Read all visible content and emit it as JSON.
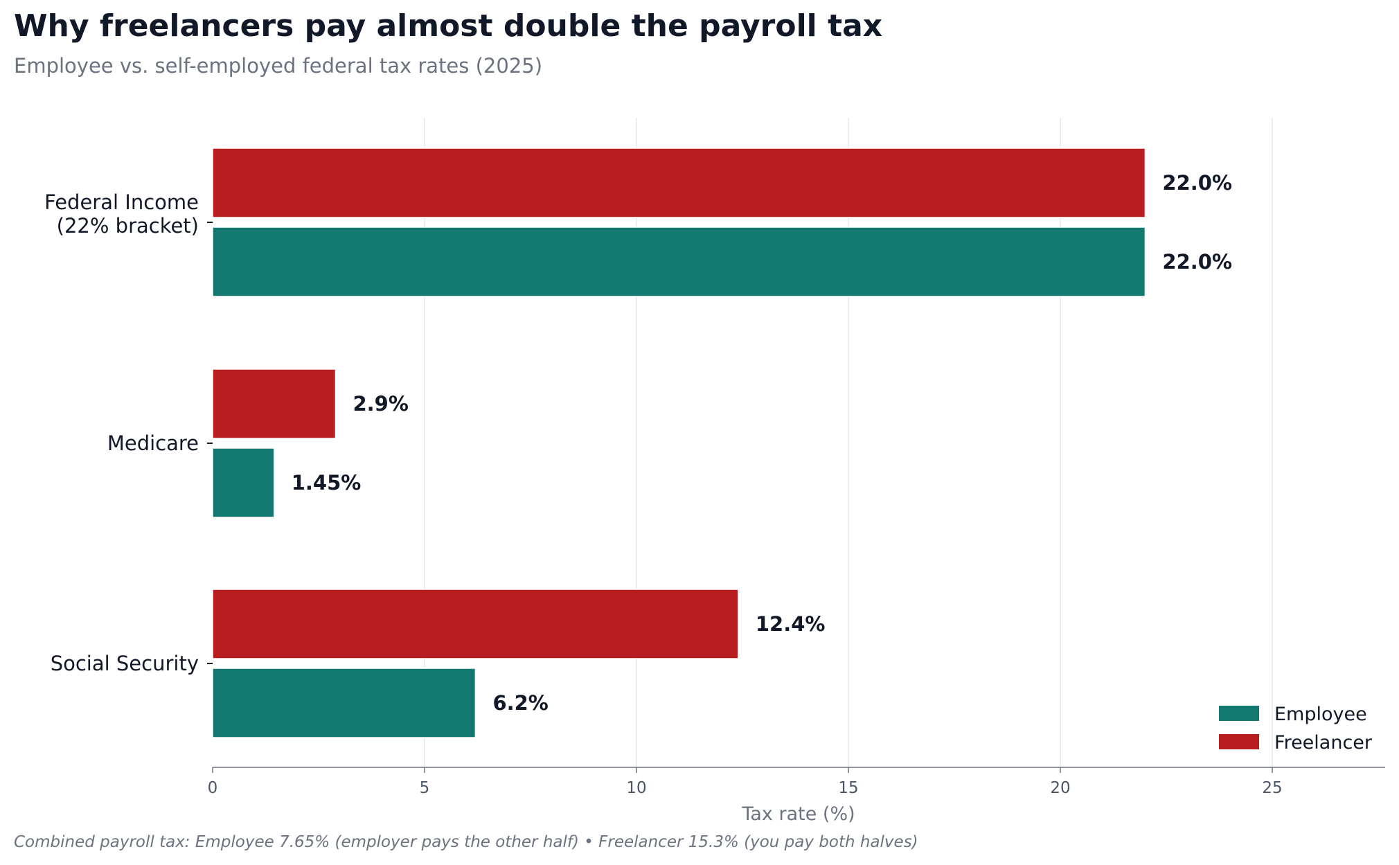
{
  "chart_data": {
    "type": "bar",
    "orientation": "horizontal",
    "title": "Why freelancers pay almost double the payroll tax",
    "subtitle": "Employee vs. self-employed federal tax rates (2025)",
    "xlabel": "Tax rate (%)",
    "ylabel": "",
    "xlim": [
      0,
      28
    ],
    "xticks": [
      0,
      5,
      10,
      15,
      20,
      25
    ],
    "grid": "vertical",
    "legend_position": "bottom-right",
    "categories": [
      [
        "Federal Income",
        "(22% bracket)"
      ],
      [
        "Medicare"
      ],
      [
        "Social Security"
      ]
    ],
    "series": [
      {
        "name": "Employee",
        "color": "#127870",
        "values": [
          22.0,
          1.45,
          6.2
        ],
        "labels": [
          "22.0%",
          "1.45%",
          "6.2%"
        ]
      },
      {
        "name": "Freelancer",
        "color": "#b71c1f",
        "values": [
          22.0,
          2.9,
          12.4
        ],
        "labels": [
          "22.0%",
          "2.9%",
          "12.4%"
        ]
      }
    ],
    "footnote": "Combined payroll tax: Employee 7.65% (employer pays the other half) • Freelancer 15.3% (you pay both halves)"
  }
}
